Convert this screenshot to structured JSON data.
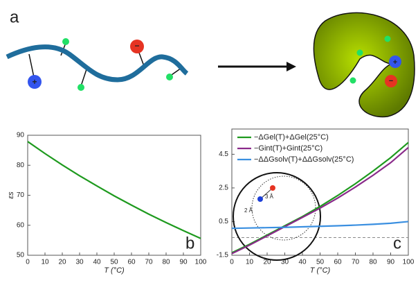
{
  "panel_a": {
    "label": "a",
    "charges": [
      "+",
      "−",
      "+",
      "−"
    ]
  },
  "chart_data": [
    {
      "type": "line",
      "panel": "b",
      "ylabel": "εs",
      "xlabel": "T (°C)",
      "x": [
        0,
        10,
        20,
        30,
        40,
        50,
        60,
        70,
        80,
        90,
        100
      ],
      "series": [
        {
          "name": "εs",
          "color": "#1e9a1e",
          "values": [
            87.9,
            83.9,
            80.1,
            76.5,
            73.1,
            69.8,
            66.7,
            63.7,
            60.9,
            58.2,
            55.6
          ]
        }
      ],
      "xlim": [
        0,
        100
      ],
      "xticks": [
        0,
        10,
        20,
        30,
        40,
        50,
        60,
        70,
        80,
        90,
        100
      ],
      "ylim": [
        50,
        90
      ],
      "yticks": [
        50,
        60,
        70,
        80,
        90
      ],
      "legend": false
    },
    {
      "type": "line",
      "panel": "c",
      "xlabel": "T (°C)",
      "x": [
        0,
        10,
        20,
        30,
        40,
        50,
        60,
        70,
        80,
        90,
        100
      ],
      "series": [
        {
          "name": "−ΔGel(T)+ΔGel(25°C)",
          "color": "#1e9a1e",
          "values": [
            -1.35,
            -0.85,
            -0.3,
            0.25,
            0.8,
            1.4,
            2.05,
            2.75,
            3.5,
            4.3,
            5.2
          ]
        },
        {
          "name": "−Gint(T)+Gint(25°C)",
          "color": "#8a2a8a",
          "values": [
            -1.4,
            -0.9,
            -0.35,
            0.2,
            0.75,
            1.3,
            1.9,
            2.55,
            3.25,
            4.0,
            4.9
          ]
        },
        {
          "name": "−ΔΔGsolv(T)+ΔΔGsolv(25°C)",
          "color": "#3a8fe0",
          "values": [
            0.1,
            0.12,
            0.14,
            0.16,
            0.19,
            0.22,
            0.25,
            0.29,
            0.34,
            0.4,
            0.5
          ]
        }
      ],
      "reference_line": -0.45,
      "xlim": [
        0,
        100
      ],
      "xticks": [
        0,
        10,
        20,
        30,
        40,
        50,
        60,
        70,
        80,
        90,
        100
      ],
      "ylim": [
        -1.5,
        6
      ],
      "yticks": [
        -1.5,
        0.5,
        2.5,
        4.5
      ],
      "legend": "upper left",
      "inset": {
        "labels": [
          "3 Å",
          "2 Å"
        ]
      }
    }
  ]
}
